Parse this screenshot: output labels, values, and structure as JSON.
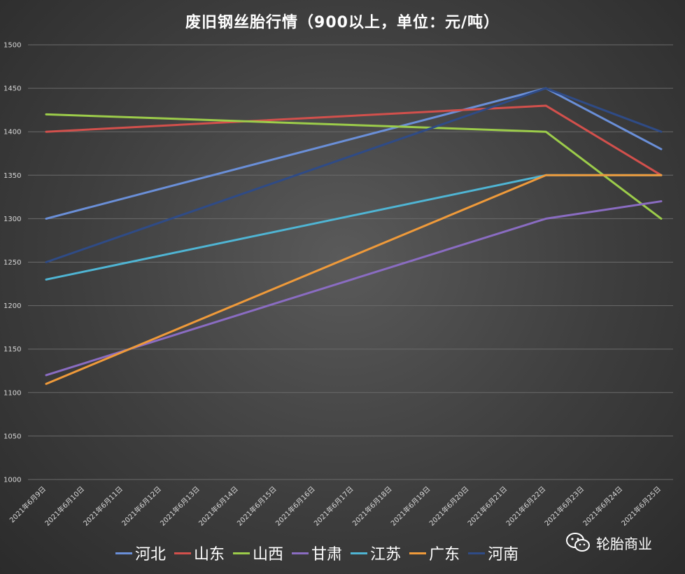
{
  "chart_data": {
    "type": "line",
    "title": "废旧钢丝胎行情（900以上，单位：元/吨）",
    "xlabel": "",
    "ylabel": "",
    "ylim": [
      1000,
      1500
    ],
    "yticks": [
      1000,
      1050,
      1100,
      1150,
      1200,
      1250,
      1300,
      1350,
      1400,
      1450,
      1500
    ],
    "grid": true,
    "legend_position": "bottom",
    "categories": [
      "2021年6月9日",
      "2021年6月10日",
      "2021年6月11日",
      "2021年6月12日",
      "2021年6月13日",
      "2021年6月14日",
      "2021年6月15日",
      "2021年6月16日",
      "2021年6月17日",
      "2021年6月18日",
      "2021年6月19日",
      "2021年6月20日",
      "2021年6月21日",
      "2021年6月22日",
      "2021年6月23日",
      "2021年6月24日",
      "2021年6月25日"
    ],
    "series": [
      {
        "name": "河北",
        "color": "#6a8fd8",
        "points": [
          {
            "x": "2021年6月9日",
            "y": 1300
          },
          {
            "x": "2021年6月22日",
            "y": 1450
          },
          {
            "x": "2021年6月25日",
            "y": 1380
          }
        ]
      },
      {
        "name": "山东",
        "color": "#d2504c",
        "points": [
          {
            "x": "2021年6月9日",
            "y": 1400
          },
          {
            "x": "2021年6月22日",
            "y": 1430
          },
          {
            "x": "2021年6月25日",
            "y": 1350
          }
        ]
      },
      {
        "name": "山西",
        "color": "#9ccc4a",
        "points": [
          {
            "x": "2021年6月9日",
            "y": 1420
          },
          {
            "x": "2021年6月22日",
            "y": 1400
          },
          {
            "x": "2021年6月25日",
            "y": 1300
          }
        ]
      },
      {
        "name": "甘肃",
        "color": "#8a6cc2",
        "points": [
          {
            "x": "2021年6月9日",
            "y": 1120
          },
          {
            "x": "2021年6月22日",
            "y": 1300
          },
          {
            "x": "2021年6月25日",
            "y": 1320
          }
        ]
      },
      {
        "name": "江苏",
        "color": "#4fb5d4",
        "points": [
          {
            "x": "2021年6月9日",
            "y": 1230
          },
          {
            "x": "2021年6月22日",
            "y": 1350
          },
          {
            "x": "2021年6月25日",
            "y": 1350
          }
        ]
      },
      {
        "name": "广东",
        "color": "#ef9a3a",
        "points": [
          {
            "x": "2021年6月9日",
            "y": 1110
          },
          {
            "x": "2021年6月22日",
            "y": 1350
          },
          {
            "x": "2021年6月25日",
            "y": 1350
          }
        ]
      },
      {
        "name": "河南",
        "color": "#2f4b86",
        "points": [
          {
            "x": "2021年6月9日",
            "y": 1250
          },
          {
            "x": "2021年6月22日",
            "y": 1450
          },
          {
            "x": "2021年6月25日",
            "y": 1400
          }
        ]
      }
    ]
  },
  "watermark": {
    "text": "轮胎商业",
    "icon": "wechat-icon"
  }
}
